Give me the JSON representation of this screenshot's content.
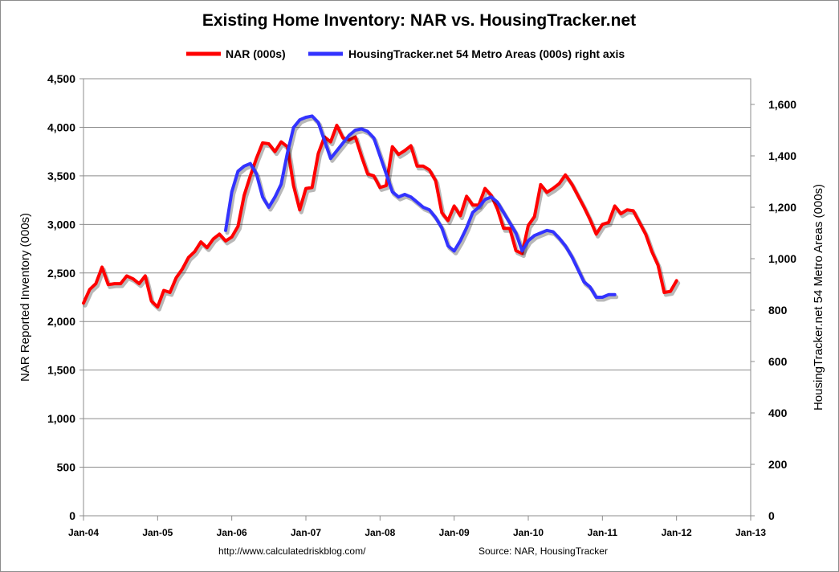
{
  "chart_data": {
    "type": "line",
    "title": "Existing Home Inventory: NAR vs. HousingTracker.net",
    "xlabel": "",
    "ylabel": "NAR Reported Inventory (000s)",
    "y2label": "HousingTracker.net 54 Metro Areas (000s)",
    "x_ticks": [
      "Jan-04",
      "Jan-05",
      "Jan-06",
      "Jan-07",
      "Jan-08",
      "Jan-09",
      "Jan-10",
      "Jan-11",
      "Jan-12",
      "Jan-13"
    ],
    "y_ticks": [
      "0",
      "500",
      "1,000",
      "1,500",
      "2,000",
      "2,500",
      "3,000",
      "3,500",
      "4,000",
      "4,500"
    ],
    "y2_ticks": [
      "0",
      "200",
      "400",
      "600",
      "800",
      "1,000",
      "1,200",
      "1,400",
      "1,600"
    ],
    "xlim": [
      0,
      108
    ],
    "ylim": [
      0,
      4500
    ],
    "y2lim": [
      0,
      1700
    ],
    "grid": true,
    "legend_position": "top",
    "footer_left": "http://www.calculatedriskblog.com/",
    "footer_right": "Source: NAR, HousingTracker",
    "series": [
      {
        "name": "NAR (000s)",
        "axis": "left",
        "color": "#ff0000",
        "x_start": 0,
        "values": [
          2190,
          2330,
          2390,
          2560,
          2380,
          2390,
          2390,
          2470,
          2440,
          2390,
          2470,
          2210,
          2150,
          2320,
          2300,
          2450,
          2540,
          2660,
          2720,
          2820,
          2760,
          2850,
          2900,
          2830,
          2870,
          2980,
          3300,
          3500,
          3680,
          3840,
          3830,
          3750,
          3850,
          3800,
          3400,
          3150,
          3370,
          3380,
          3730,
          3900,
          3850,
          4020,
          3890,
          3870,
          3900,
          3700,
          3520,
          3500,
          3380,
          3400,
          3800,
          3720,
          3760,
          3810,
          3600,
          3600,
          3560,
          3450,
          3120,
          3040,
          3190,
          3090,
          3290,
          3200,
          3200,
          3370,
          3300,
          3160,
          2960,
          2960,
          2730,
          2700,
          2990,
          3080,
          3410,
          3330,
          3370,
          3420,
          3510,
          3420,
          3300,
          3180,
          3050,
          2900,
          3000,
          3020,
          3190,
          3110,
          3150,
          3140,
          3020,
          2900,
          2720,
          2580,
          2300,
          2310,
          2420
        ]
      },
      {
        "name": "HousingTracker.net 54 Metro Areas (000s) right axis",
        "axis": "right",
        "color": "#3333ff",
        "x_start": 23,
        "values": [
          1110,
          1260,
          1340,
          1360,
          1370,
          1330,
          1240,
          1200,
          1240,
          1290,
          1410,
          1510,
          1540,
          1550,
          1555,
          1530,
          1460,
          1390,
          1420,
          1450,
          1480,
          1500,
          1505,
          1495,
          1470,
          1400,
          1330,
          1260,
          1240,
          1250,
          1240,
          1220,
          1200,
          1190,
          1160,
          1120,
          1050,
          1030,
          1070,
          1120,
          1180,
          1200,
          1230,
          1240,
          1220,
          1180,
          1140,
          1100,
          1030,
          1070,
          1090,
          1100,
          1110,
          1105,
          1080,
          1050,
          1010,
          960,
          910,
          890,
          850,
          850,
          860,
          860
        ]
      }
    ]
  }
}
